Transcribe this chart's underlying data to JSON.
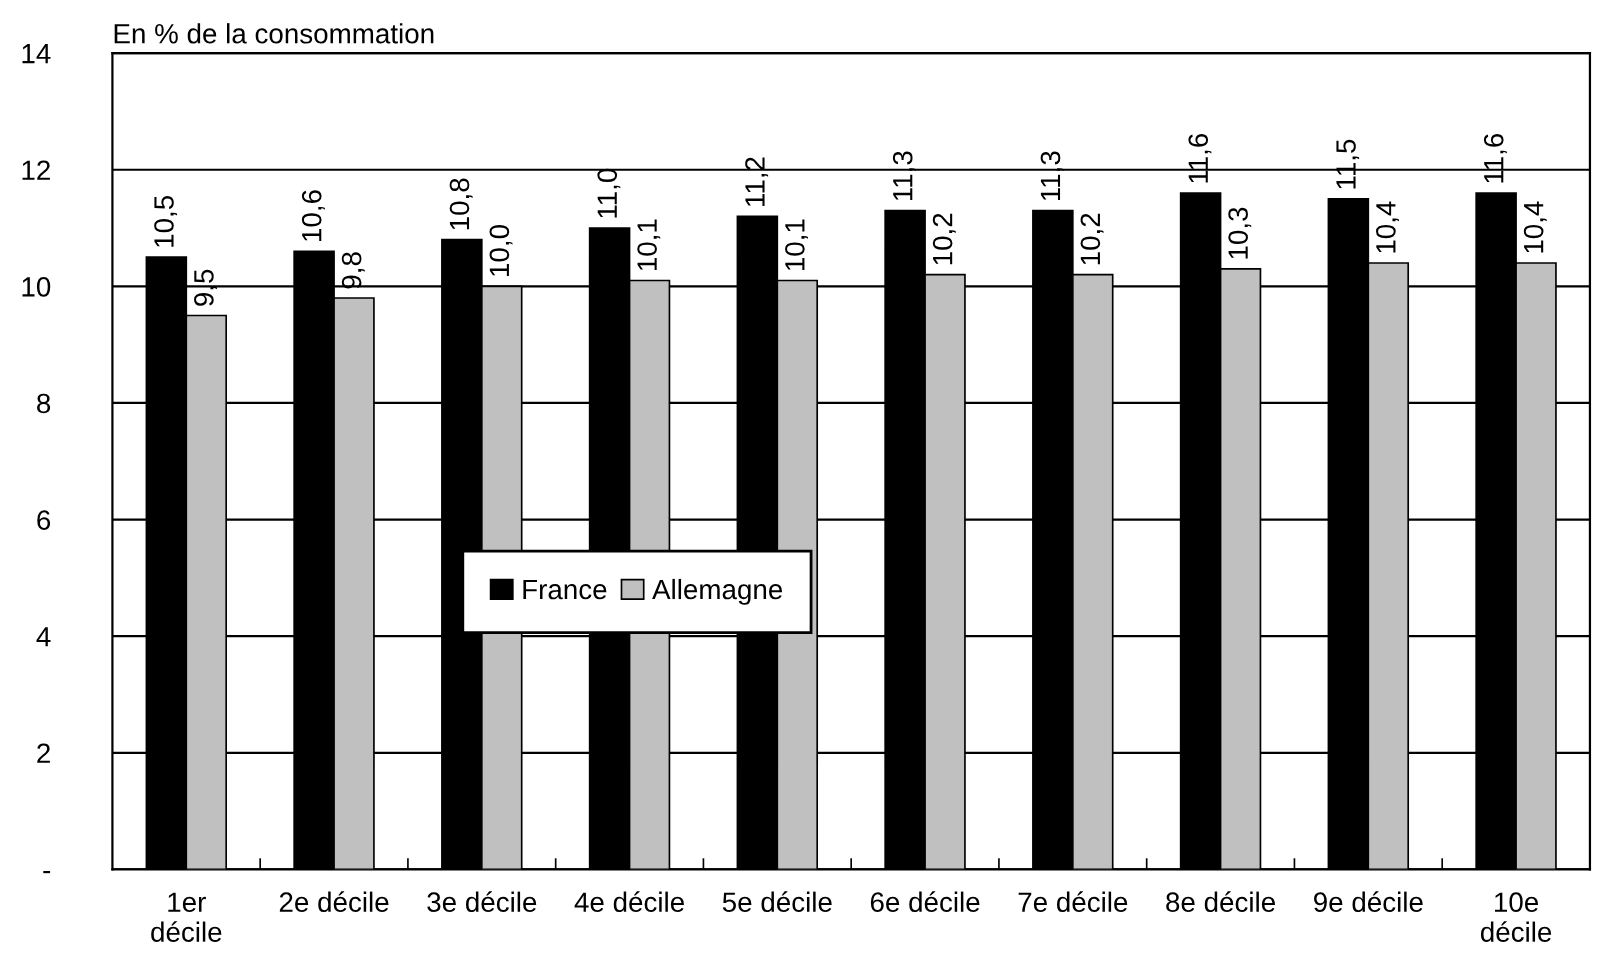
{
  "chart_data": {
    "type": "bar",
    "subtitle": "En % de la consommation",
    "categories": [
      "1er\ndécile",
      "2e décile",
      "3e décile",
      "4e décile",
      "5e décile",
      "6e décile",
      "7e décile",
      "8e décile",
      "9e décile",
      "10e\ndécile"
    ],
    "series": [
      {
        "name": "France",
        "color": "#000000",
        "values": [
          10.5,
          10.6,
          10.8,
          11.0,
          11.2,
          11.3,
          11.3,
          11.6,
          11.5,
          11.6
        ],
        "value_labels": [
          "10,5",
          "10,6",
          "10,8",
          "11,0",
          "11,2",
          "11,3",
          "11,3",
          "11,6",
          "11,5",
          "11,6"
        ]
      },
      {
        "name": "Allemagne",
        "color": "#c0c0c0",
        "values": [
          9.5,
          9.8,
          10.0,
          10.1,
          10.1,
          10.2,
          10.2,
          10.3,
          10.4,
          10.4
        ],
        "value_labels": [
          "9,5",
          "9,8",
          "10,0",
          "10,1",
          "10,1",
          "10,2",
          "10,2",
          "10,3",
          "10,4",
          "10,4"
        ]
      }
    ],
    "ylim": [
      0,
      14
    ],
    "yticks": [
      {
        "value": 0,
        "label": "-"
      },
      2,
      4,
      6,
      8,
      10,
      12,
      14
    ],
    "grid": "y",
    "legend": "center"
  }
}
